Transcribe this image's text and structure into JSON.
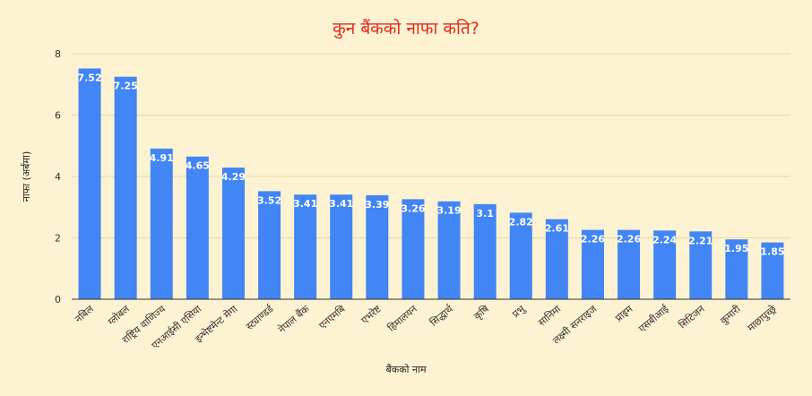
{
  "chart_data": {
    "type": "bar",
    "title": "कुन बैंकको नाफा कति?",
    "xlabel": "बैंकको नाम",
    "ylabel": "नाफा (अर्बमा)",
    "ylim": [
      0,
      8
    ],
    "yticks": [
      0,
      2,
      4,
      6,
      8
    ],
    "grid": true,
    "bar_color": "#4285f4",
    "categories": [
      "नबिल",
      "ग्लोबल",
      "राष्ट्रिय वाणिज्य",
      "एनआईसी एसिया",
      "इन्भेष्टमेन्ट मेगा",
      "स्ट्याण्डर्ड",
      "नेपाल बैंक",
      "एनएमबि",
      "एभरेष्ट",
      "हिमालयन",
      "सिद्धार्थ",
      "कृषि",
      "प्रभु",
      "सानिमा",
      "लक्ष्मी सनराइज",
      "प्राइम",
      "एसबीआई",
      "सिटिजन",
      "कुमारी",
      "माछापुच्छ्रे"
    ],
    "values": [
      7.52,
      7.25,
      4.91,
      4.65,
      4.29,
      3.52,
      3.41,
      3.41,
      3.39,
      3.26,
      3.19,
      3.1,
      2.82,
      2.61,
      2.26,
      2.26,
      2.24,
      2.21,
      1.95,
      1.85
    ],
    "value_labels": [
      "7.52",
      "7.25",
      "4.91",
      "4.65",
      "4.29",
      "3.52",
      "3.41",
      "3.41",
      "3.39",
      "3.26",
      "3.19",
      "3.1",
      "2.82",
      "2.61",
      "2.26",
      "2.26",
      "2.24",
      "2.21",
      "1.95",
      "1.85"
    ]
  }
}
